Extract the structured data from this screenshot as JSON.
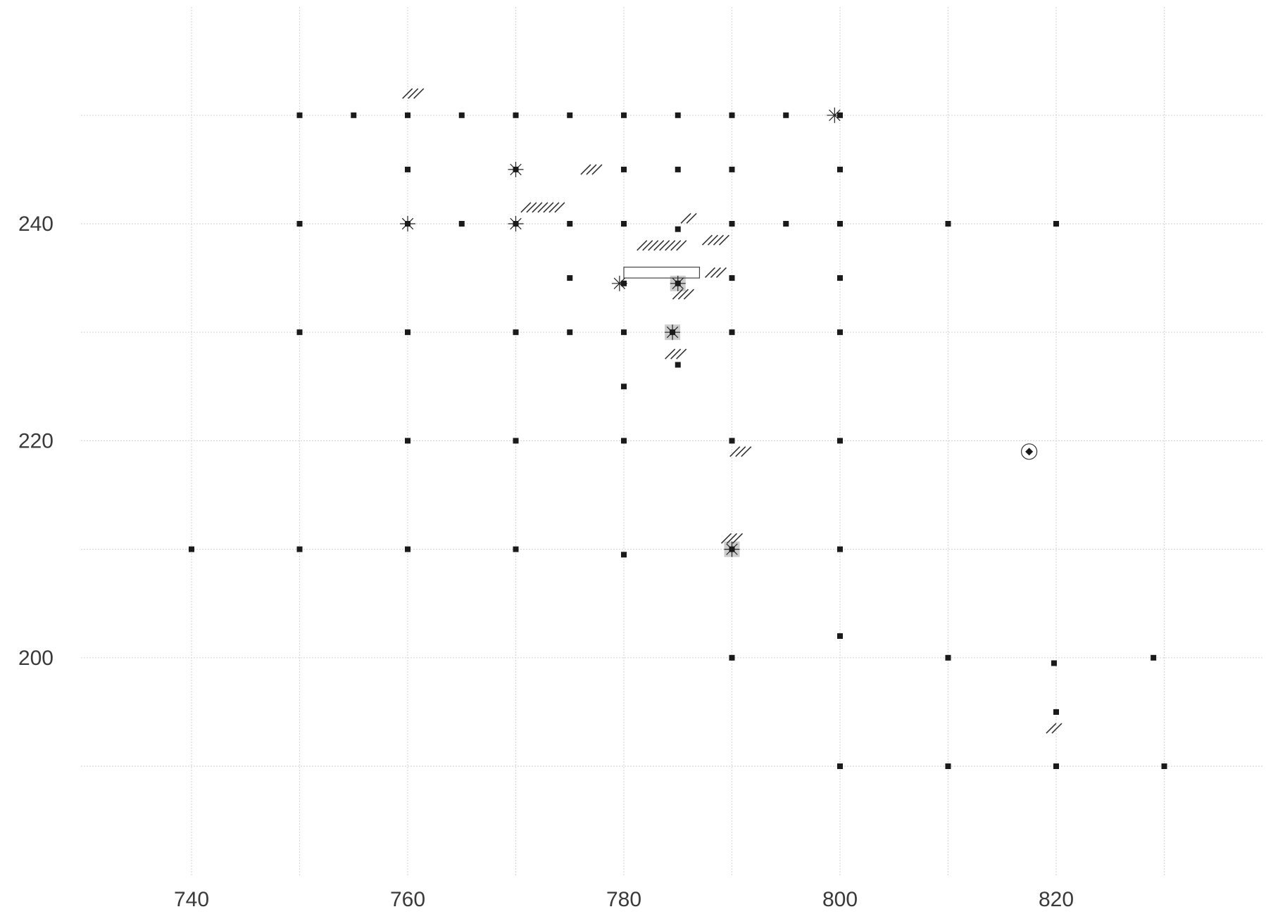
{
  "chart_data": {
    "type": "scatter",
    "title": "",
    "xlabel": "",
    "ylabel": "",
    "xlim": [
      730,
      840
    ],
    "ylim": [
      182,
      258
    ],
    "xticks": [
      740,
      760,
      780,
      800,
      820
    ],
    "yticks": [
      200,
      220,
      240
    ],
    "grid": true,
    "points": [
      {
        "x": 750,
        "y": 250
      },
      {
        "x": 755,
        "y": 250
      },
      {
        "x": 760,
        "y": 250
      },
      {
        "x": 765,
        "y": 250
      },
      {
        "x": 770,
        "y": 250
      },
      {
        "x": 775,
        "y": 250
      },
      {
        "x": 780,
        "y": 250
      },
      {
        "x": 785,
        "y": 250
      },
      {
        "x": 790,
        "y": 250
      },
      {
        "x": 795,
        "y": 250
      },
      {
        "x": 800,
        "y": 250
      },
      {
        "x": 760,
        "y": 245
      },
      {
        "x": 770,
        "y": 245
      },
      {
        "x": 780,
        "y": 245
      },
      {
        "x": 785,
        "y": 245
      },
      {
        "x": 790,
        "y": 245
      },
      {
        "x": 800,
        "y": 245
      },
      {
        "x": 750,
        "y": 240
      },
      {
        "x": 760,
        "y": 240
      },
      {
        "x": 765,
        "y": 240
      },
      {
        "x": 770,
        "y": 240
      },
      {
        "x": 775,
        "y": 240
      },
      {
        "x": 780,
        "y": 240
      },
      {
        "x": 785,
        "y": 239.5
      },
      {
        "x": 790,
        "y": 240
      },
      {
        "x": 795,
        "y": 240
      },
      {
        "x": 800,
        "y": 240
      },
      {
        "x": 810,
        "y": 240
      },
      {
        "x": 820,
        "y": 240
      },
      {
        "x": 775,
        "y": 235
      },
      {
        "x": 780,
        "y": 234.5
      },
      {
        "x": 785,
        "y": 234.5
      },
      {
        "x": 790,
        "y": 235
      },
      {
        "x": 800,
        "y": 235
      },
      {
        "x": 750,
        "y": 230
      },
      {
        "x": 760,
        "y": 230
      },
      {
        "x": 770,
        "y": 230
      },
      {
        "x": 775,
        "y": 230
      },
      {
        "x": 780,
        "y": 230
      },
      {
        "x": 784.5,
        "y": 230
      },
      {
        "x": 790,
        "y": 230
      },
      {
        "x": 800,
        "y": 230
      },
      {
        "x": 785,
        "y": 227
      },
      {
        "x": 780,
        "y": 225
      },
      {
        "x": 760,
        "y": 220
      },
      {
        "x": 770,
        "y": 220
      },
      {
        "x": 780,
        "y": 220
      },
      {
        "x": 790,
        "y": 220
      },
      {
        "x": 800,
        "y": 220
      },
      {
        "x": 740,
        "y": 210
      },
      {
        "x": 750,
        "y": 210
      },
      {
        "x": 760,
        "y": 210
      },
      {
        "x": 770,
        "y": 210
      },
      {
        "x": 780,
        "y": 209.5
      },
      {
        "x": 790,
        "y": 210
      },
      {
        "x": 800,
        "y": 210
      },
      {
        "x": 800,
        "y": 202
      },
      {
        "x": 790,
        "y": 200
      },
      {
        "x": 810,
        "y": 200
      },
      {
        "x": 819.8,
        "y": 199.5
      },
      {
        "x": 829,
        "y": 200
      },
      {
        "x": 820,
        "y": 195
      },
      {
        "x": 800,
        "y": 190
      },
      {
        "x": 810,
        "y": 190
      },
      {
        "x": 820,
        "y": 190
      },
      {
        "x": 830,
        "y": 190
      }
    ],
    "star_markers": [
      {
        "x": 799.5,
        "y": 250
      },
      {
        "x": 770,
        "y": 245
      },
      {
        "x": 760,
        "y": 240
      },
      {
        "x": 770,
        "y": 240
      },
      {
        "x": 779.6,
        "y": 234.5
      },
      {
        "x": 785,
        "y": 234.5
      },
      {
        "x": 784.5,
        "y": 230
      },
      {
        "x": 790,
        "y": 210
      }
    ],
    "shaded_markers": [
      {
        "x": 785,
        "y": 234.5
      },
      {
        "x": 784.5,
        "y": 230
      },
      {
        "x": 790,
        "y": 210
      }
    ],
    "hatch_marks": [
      {
        "x": 760.5,
        "y": 252,
        "count": 3
      },
      {
        "x": 777,
        "y": 245,
        "count": 3
      },
      {
        "x": 772.5,
        "y": 241.5,
        "count": 7
      },
      {
        "x": 783.5,
        "y": 238,
        "count": 8
      },
      {
        "x": 786,
        "y": 240.5,
        "count": 2
      },
      {
        "x": 788.5,
        "y": 238.5,
        "count": 4
      },
      {
        "x": 788.5,
        "y": 235.5,
        "count": 3
      },
      {
        "x": 785.5,
        "y": 233.5,
        "count": 3
      },
      {
        "x": 784.8,
        "y": 228,
        "count": 3
      },
      {
        "x": 790.8,
        "y": 219,
        "count": 3
      },
      {
        "x": 790,
        "y": 211,
        "count": 3
      },
      {
        "x": 819.8,
        "y": 193.5,
        "count": 2
      }
    ],
    "rect_annotation": {
      "x0": 780,
      "x1": 787,
      "y0": 235,
      "y1": 236
    },
    "target_marker": {
      "x": 817.5,
      "y": 219
    }
  }
}
